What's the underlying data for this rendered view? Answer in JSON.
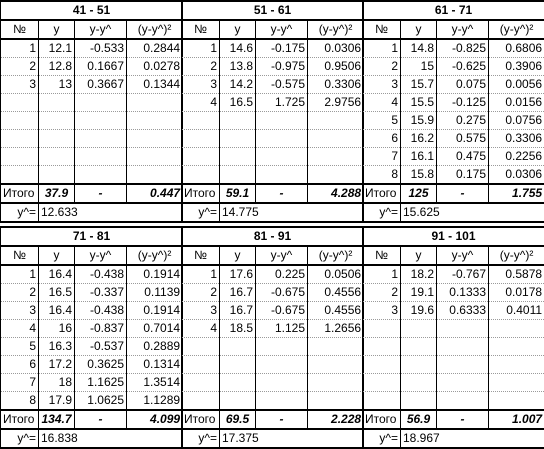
{
  "headers": [
    "№",
    "y",
    "y-y^",
    "(y-y^)²"
  ],
  "total_label": "Итого",
  "dash": "-",
  "yhat_label": "y^=",
  "blocks": [
    {
      "title": "41 - 51",
      "rows": [
        [
          "1",
          "12.1",
          "-0.533",
          "0.2844"
        ],
        [
          "2",
          "12.8",
          "0.1667",
          "0.0278"
        ],
        [
          "3",
          "13",
          "0.3667",
          "0.1344"
        ],
        [
          "",
          "",
          "",
          ""
        ],
        [
          "",
          "",
          "",
          ""
        ],
        [
          "",
          "",
          "",
          ""
        ],
        [
          "",
          "",
          "",
          ""
        ],
        [
          "",
          "",
          "",
          ""
        ]
      ],
      "total_y": "37.9",
      "total_sq": "0.447",
      "yhat": "12.633"
    },
    {
      "title": "51 - 61",
      "rows": [
        [
          "1",
          "14.6",
          "-0.175",
          "0.0306"
        ],
        [
          "2",
          "13.8",
          "-0.975",
          "0.9506"
        ],
        [
          "3",
          "14.2",
          "-0.575",
          "0.3306"
        ],
        [
          "4",
          "16.5",
          "1.725",
          "2.9756"
        ],
        [
          "",
          "",
          "",
          ""
        ],
        [
          "",
          "",
          "",
          ""
        ],
        [
          "",
          "",
          "",
          ""
        ],
        [
          "",
          "",
          "",
          ""
        ]
      ],
      "total_y": "59.1",
      "total_sq": "4.288",
      "yhat": "14.775"
    },
    {
      "title": "61 - 71",
      "rows": [
        [
          "1",
          "14.8",
          "-0.825",
          "0.6806"
        ],
        [
          "2",
          "15",
          "-0.625",
          "0.3906"
        ],
        [
          "3",
          "15.7",
          "0.075",
          "0.0056"
        ],
        [
          "4",
          "15.5",
          "-0.125",
          "0.0156"
        ],
        [
          "5",
          "15.9",
          "0.275",
          "0.0756"
        ],
        [
          "6",
          "16.2",
          "0.575",
          "0.3306"
        ],
        [
          "7",
          "16.1",
          "0.475",
          "0.2256"
        ],
        [
          "8",
          "15.8",
          "0.175",
          "0.0306"
        ]
      ],
      "total_y": "125",
      "total_sq": "1.755",
      "yhat": "15.625"
    },
    {
      "title": "71 - 81",
      "rows": [
        [
          "1",
          "16.4",
          "-0.438",
          "0.1914"
        ],
        [
          "2",
          "16.5",
          "-0.337",
          "0.1139"
        ],
        [
          "3",
          "16.4",
          "-0.438",
          "0.1914"
        ],
        [
          "4",
          "16",
          "-0.837",
          "0.7014"
        ],
        [
          "5",
          "16.3",
          "-0.537",
          "0.2889"
        ],
        [
          "6",
          "17.2",
          "0.3625",
          "0.1314"
        ],
        [
          "7",
          "18",
          "1.1625",
          "1.3514"
        ],
        [
          "8",
          "17.9",
          "1.0625",
          "1.1289"
        ]
      ],
      "total_y": "134.7",
      "total_sq": "4.099",
      "yhat": "16.838"
    },
    {
      "title": "81 - 91",
      "rows": [
        [
          "1",
          "17.6",
          "0.225",
          "0.0506"
        ],
        [
          "2",
          "16.7",
          "-0.675",
          "0.4556"
        ],
        [
          "3",
          "16.7",
          "-0.675",
          "0.4556"
        ],
        [
          "4",
          "18.5",
          "1.125",
          "1.2656"
        ],
        [
          "",
          "",
          "",
          ""
        ],
        [
          "",
          "",
          "",
          ""
        ],
        [
          "",
          "",
          "",
          ""
        ],
        [
          "",
          "",
          "",
          ""
        ]
      ],
      "total_y": "69.5",
      "total_sq": "2.228",
      "yhat": "17.375"
    },
    {
      "title": "91 - 101",
      "rows": [
        [
          "1",
          "18.2",
          "-0.767",
          "0.5878"
        ],
        [
          "2",
          "19.1",
          "0.1333",
          "0.0178"
        ],
        [
          "3",
          "19.6",
          "0.6333",
          "0.4011"
        ],
        [
          "",
          "",
          "",
          ""
        ],
        [
          "",
          "",
          "",
          ""
        ],
        [
          "",
          "",
          "",
          ""
        ],
        [
          "",
          "",
          "",
          ""
        ],
        [
          "",
          "",
          "",
          ""
        ]
      ],
      "total_y": "56.9",
      "total_sq": "1.007",
      "yhat": "18.967"
    }
  ]
}
